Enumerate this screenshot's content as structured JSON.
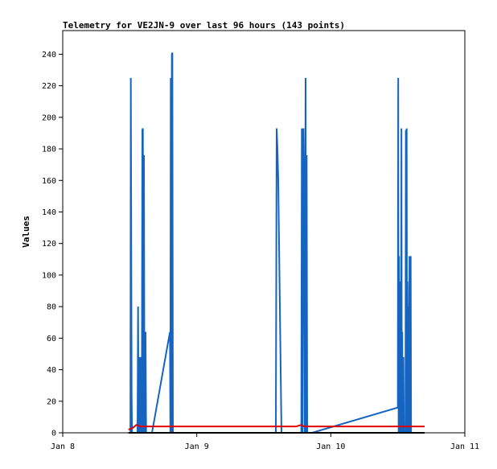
{
  "chart_data": {
    "type": "line",
    "title": "Telemetry for VE2JN-9 over last 96 hours (143 points)",
    "xlabel": "",
    "ylabel": "Values",
    "xlim": [
      0,
      3
    ],
    "ylim": [
      0,
      255
    ],
    "x_tick_values": [
      0,
      1,
      2,
      3
    ],
    "x_tick_labels": [
      "Jan 8",
      "Jan 9",
      "Jan 10",
      "Jan 11"
    ],
    "y_ticks": [
      0,
      20,
      40,
      60,
      80,
      100,
      120,
      140,
      160,
      180,
      200,
      220,
      240
    ],
    "grid": false,
    "legend": "none",
    "series": [
      {
        "color": "#1565c0",
        "x": [
          0.505,
          0.508,
          0.511,
          0.514,
          0.517,
          0.521,
          0.558,
          0.562,
          0.566,
          0.57,
          0.574,
          0.578,
          0.582,
          0.586,
          0.59,
          0.594,
          0.598,
          0.602,
          0.606,
          0.61,
          0.614,
          0.618,
          0.622,
          0.626,
          0.63,
          0.634,
          0.638,
          0.642,
          0.646,
          0.65,
          0.654,
          0.658,
          0.662,
          0.666,
          0.8,
          0.803,
          0.806,
          0.81,
          0.814,
          0.818,
          0.822,
          0.826,
          0.83,
          0.834,
          0.838,
          1.59,
          1.596,
          1.602,
          1.608,
          1.614,
          1.62,
          1.626,
          1.632,
          1.638,
          1.644,
          1.65,
          1.656,
          1.662,
          1.668,
          1.674,
          1.78,
          1.784,
          1.788,
          1.792,
          1.796,
          1.8,
          1.804,
          1.808,
          1.812,
          1.816,
          1.82,
          1.824,
          1.828,
          1.832,
          1.836,
          1.84,
          1.844,
          1.848,
          1.852,
          1.856,
          1.86,
          2.5,
          2.503,
          2.506,
          2.509,
          2.512,
          2.515,
          2.518,
          2.521,
          2.524,
          2.527,
          2.53,
          2.533,
          2.536,
          2.539,
          2.542,
          2.545,
          2.548,
          2.551,
          2.554,
          2.557,
          2.56,
          2.563,
          2.566,
          2.569,
          2.572,
          2.575,
          2.578,
          2.581,
          2.584,
          2.587,
          2.59,
          2.593,
          2.596,
          2.599,
          2.602,
          2.605,
          2.608,
          2.611,
          2.614,
          2.617,
          2.62,
          2.623,
          2.626,
          2.629,
          2.632,
          2.635,
          2.638,
          2.641,
          2.644,
          2.647,
          2.65,
          2.653,
          2.656,
          2.659,
          2.662,
          2.665,
          2.668,
          2.671,
          2.674,
          2.677,
          2.68,
          2.683
        ],
        "y": [
          0,
          225,
          128,
          24,
          0,
          0,
          0,
          80,
          8,
          0,
          48,
          0,
          8,
          48,
          0,
          192,
          193,
          0,
          176,
          0,
          0,
          64,
          0,
          0,
          0,
          0,
          0,
          0,
          0,
          0,
          0,
          0,
          0,
          0,
          64,
          0,
          225,
          0,
          240,
          241,
          0,
          0,
          0,
          0,
          0,
          0,
          193,
          180,
          160,
          120,
          80,
          40,
          0,
          0,
          0,
          0,
          0,
          0,
          0,
          0,
          0,
          193,
          0,
          128,
          193,
          160,
          0,
          96,
          225,
          0,
          176,
          0,
          0,
          0,
          0,
          0,
          0,
          0,
          0,
          0,
          0,
          16,
          225,
          0,
          112,
          0,
          80,
          0,
          96,
          0,
          193,
          0,
          64,
          0,
          0,
          48,
          0,
          0,
          0,
          0,
          0,
          192,
          0,
          193,
          0,
          96,
          48,
          0,
          80,
          0,
          112,
          0,
          48,
          112,
          0,
          0,
          0,
          0,
          0,
          0,
          0,
          0,
          0,
          0,
          0,
          0,
          0,
          0,
          0,
          0,
          0,
          0,
          0,
          0,
          0,
          0,
          0,
          0,
          0,
          0,
          0,
          0,
          0
        ]
      },
      {
        "color": "#e00000",
        "x": [
          0.49,
          0.52,
          0.55,
          0.58,
          1.0,
          1.5,
          1.7,
          1.74,
          1.78,
          1.8,
          2.0,
          2.5,
          2.7
        ],
        "y": [
          2,
          3,
          5,
          4,
          4,
          4,
          4,
          4,
          5,
          4,
          4,
          4,
          4
        ]
      },
      {
        "color": "#000000",
        "x": [
          0.49,
          2.7
        ],
        "y": [
          0,
          0
        ]
      }
    ]
  }
}
